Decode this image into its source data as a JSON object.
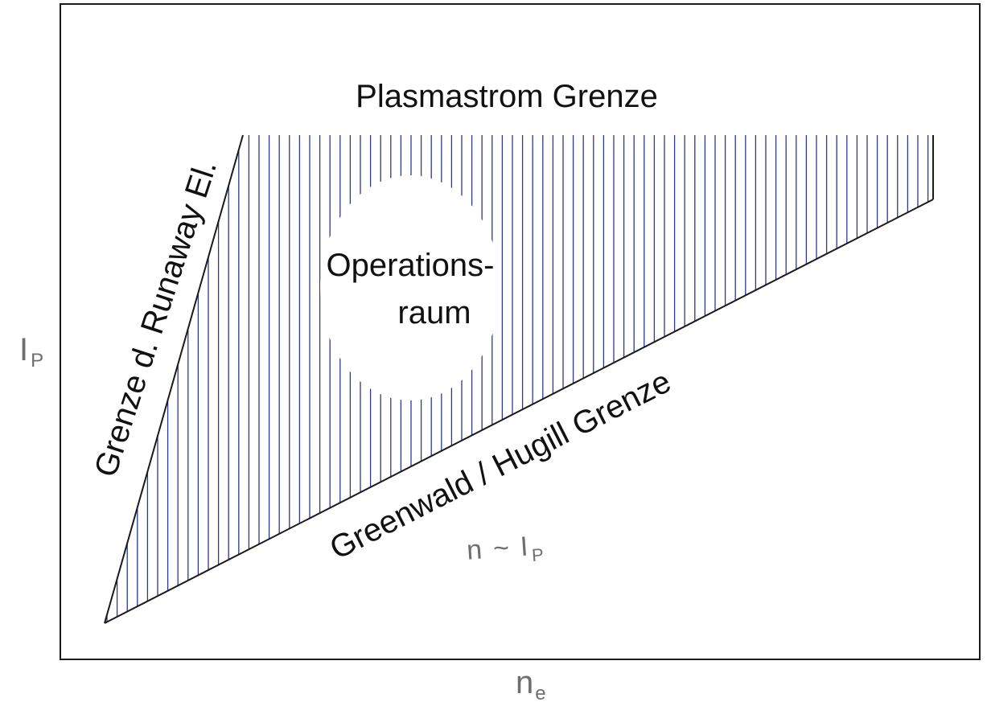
{
  "labels": {
    "top_limit": "Plasmastrom Grenze",
    "left_limit": "Grenze d. Runaway El.",
    "bottom_limit": "Greenwald / Hugill Grenze",
    "region_line1": "Operations-",
    "region_line2": "raum",
    "scaling_n": "n",
    "scaling_tilde": "~",
    "scaling_I": "I",
    "scaling_sub": "P"
  },
  "axes": {
    "x_main": "n",
    "x_sub": "e",
    "y_main": "I",
    "y_sub": "P"
  },
  "colors": {
    "hatch": "#2b3a8c",
    "boundary": "#1a1a1a",
    "frame": "#1a1a1a",
    "axis_label": "#6e6e6e"
  }
}
